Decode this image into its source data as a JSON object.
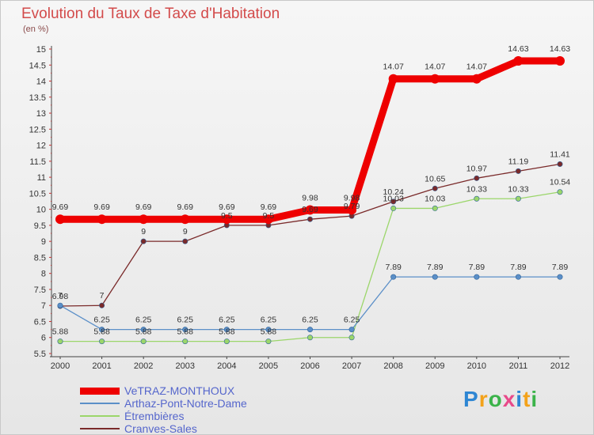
{
  "title": "Evolution du Taux de Taxe d'Habitation",
  "subtitle": "(en %)",
  "logo": {
    "text": "Proxiti",
    "colors": [
      "#2e86d3",
      "#f3a21a",
      "#3bb34a",
      "#e84a8a",
      "#2e86d3",
      "#f3a21a",
      "#3bb34a"
    ]
  },
  "chart_data": {
    "type": "line",
    "x": [
      "2000",
      "2001",
      "2002",
      "2003",
      "2004",
      "2005",
      "2006",
      "2007",
      "2008",
      "2009",
      "2010",
      "2011",
      "2012"
    ],
    "ylim": [
      5.5,
      15
    ],
    "yticks": [
      "5.5",
      "6",
      "6.5",
      "7",
      "7.5",
      "8",
      "8.5",
      "9",
      "9.5",
      "10",
      "10.5",
      "11",
      "11.5",
      "12",
      "12.5",
      "13",
      "13.5",
      "14",
      "14.5",
      "15"
    ],
    "grid": false,
    "legend_position": "bottom-left",
    "series": [
      {
        "name": "VeTRAZ-MONTHOUX",
        "color": "#ee0000",
        "values": [
          9.69,
          9.69,
          9.69,
          9.69,
          9.69,
          9.69,
          9.98,
          9.98,
          14.07,
          14.07,
          14.07,
          14.63,
          14.63
        ],
        "labels": [
          "9.69",
          "9.69",
          "9.69",
          "9.69",
          "9.69",
          "9.69",
          "9.98",
          "9.98",
          "14.07",
          "14.07",
          "14.07",
          "14.63",
          "14.63"
        ]
      },
      {
        "name": "Arthaz-Pont-Notre-Dame",
        "color": "#5b8fc8",
        "values": [
          7.0,
          6.25,
          6.25,
          6.25,
          6.25,
          6.25,
          6.25,
          6.25,
          7.89,
          7.89,
          7.89,
          7.89,
          7.89
        ],
        "labels": [
          "7",
          "6.25",
          "6.25",
          "6.25",
          "6.25",
          "6.25",
          "6.25",
          "6.25",
          "7.89",
          "7.89",
          "7.89",
          "7.89",
          "7.89"
        ]
      },
      {
        "name": "Étrembières",
        "color": "#9bd66a",
        "values": [
          5.88,
          5.88,
          5.88,
          5.88,
          5.88,
          5.88,
          6.0,
          6.0,
          10.03,
          10.03,
          10.33,
          10.33,
          10.54
        ],
        "labels": [
          "5.88",
          "5.88",
          "5.88",
          "5.88",
          "5.88",
          "5.88",
          "",
          "",
          "10.03",
          "10.03",
          "10.33",
          "10.33",
          "10.54"
        ]
      },
      {
        "name": "Cranves-Sales",
        "color": "#7a2a2a",
        "values": [
          6.98,
          7.0,
          9.0,
          9.0,
          9.5,
          9.5,
          9.69,
          9.79,
          10.24,
          10.65,
          10.97,
          11.19,
          11.41
        ],
        "labels": [
          "6.98",
          "7",
          "9",
          "9",
          "9.5",
          "9.5",
          "9.69",
          "9.79",
          "10.24",
          "10.65",
          "10.97",
          "11.19",
          "11.41"
        ]
      }
    ]
  }
}
